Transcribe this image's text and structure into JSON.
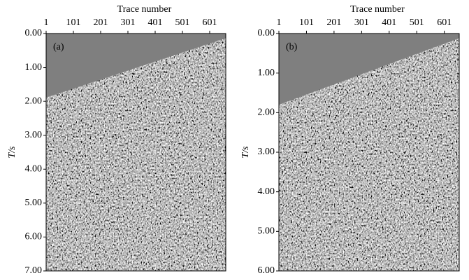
{
  "chart_data": [
    {
      "type": "heatmap",
      "title": "(a)",
      "xlabel": "Trace number",
      "ylabel": "T/s",
      "xlim": [
        1,
        660
      ],
      "xticks": [
        1,
        101,
        201,
        301,
        401,
        501,
        601
      ],
      "ylim": [
        0,
        7
      ],
      "y_inverted": true,
      "yticks": [
        {
          "value": 0,
          "label": "0.00"
        },
        {
          "value": 1,
          "label": "1.00"
        },
        {
          "value": 2,
          "label": "2.00"
        },
        {
          "value": 3,
          "label": "3.00"
        },
        {
          "value": 4,
          "label": "4.00"
        },
        {
          "value": 5,
          "label": "5.00"
        },
        {
          "value": 6,
          "label": "6.00"
        },
        {
          "value": 7,
          "label": "7.00"
        }
      ]
    },
    {
      "type": "heatmap",
      "title": "(b)",
      "xlabel": "Trace number",
      "ylabel": "T/s",
      "xlim": [
        1,
        655
      ],
      "xticks": [
        1,
        101,
        201,
        301,
        401,
        501,
        601
      ],
      "ylim": [
        0,
        6
      ],
      "y_inverted": true,
      "yticks": [
        {
          "value": 0,
          "label": "0.00"
        },
        {
          "value": 1,
          "label": "1.00"
        },
        {
          "value": 2,
          "label": "2.00"
        },
        {
          "value": 3,
          "label": "3.00"
        },
        {
          "value": 4,
          "label": "4.00"
        },
        {
          "value": 5,
          "label": "5.00"
        },
        {
          "value": 6,
          "label": "6.00"
        }
      ]
    }
  ]
}
